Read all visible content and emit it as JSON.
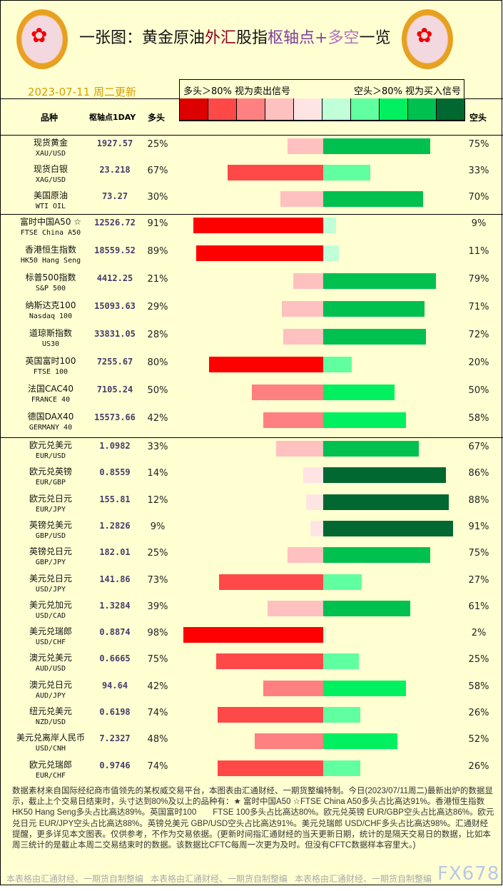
{
  "header": {
    "title_parts": [
      "一张图：黄金原油",
      "外汇",
      "股指",
      "枢轴点+",
      "多空",
      "一览"
    ],
    "date": "2023-07-11 周二更新",
    "legend_left": "多头＞80% 视为卖出信号",
    "legend_right": "空头＞80% 视为买入信号",
    "col_name": "品种",
    "col_pivot": "枢轴点1DAY",
    "col_long": "多头",
    "col_short": "空头"
  },
  "colors": {
    "long": [
      "#FFE4E4",
      "#FFC0C0",
      "#FF8080",
      "#FF4848",
      "#FF0000"
    ],
    "short": [
      "#C0FFD8",
      "#60FFA0",
      "#00F060",
      "#00C050",
      "#006830"
    ],
    "scale": [
      "#DD0000",
      "#FF4848",
      "#FF8080",
      "#FFC0C0",
      "#FFE4E4",
      "#C0FFD8",
      "#60FFA0",
      "#00F060",
      "#00C050",
      "#006830"
    ]
  },
  "sections": [
    [
      {
        "cn": "现货黄金",
        "en": "XAU/USD",
        "pivot": "1927.57",
        "long": 25,
        "short": 75
      },
      {
        "cn": "现货白银",
        "en": "XAG/USD",
        "pivot": "23.218",
        "long": 67,
        "short": 33
      },
      {
        "cn": "美国原油",
        "en": "WTI OIL",
        "pivot": "73.27",
        "long": 30,
        "short": 70
      }
    ],
    [
      {
        "cn": "富时中国A50 ☆",
        "en": "FTSE China A50",
        "pivot": "12526.72",
        "long": 91,
        "short": 9
      },
      {
        "cn": "香港恒生指数",
        "en": "HK50 Hang Seng",
        "pivot": "18559.52",
        "long": 89,
        "short": 11
      },
      {
        "cn": "标普500指数",
        "en": "S&P 500",
        "pivot": "4412.25",
        "long": 21,
        "short": 79
      },
      {
        "cn": "纳斯达克100",
        "en": "Nasdaq 100",
        "pivot": "15093.63",
        "long": 29,
        "short": 71
      },
      {
        "cn": "道琼斯指数",
        "en": "US30",
        "pivot": "33831.05",
        "long": 28,
        "short": 72
      },
      {
        "cn": "英国富时100",
        "en": "FTSE 100",
        "pivot": "7255.67",
        "long": 80,
        "short": 20
      },
      {
        "cn": "法国CAC40",
        "en": "FRANCE 40",
        "pivot": "7105.24",
        "long": 50,
        "short": 50
      },
      {
        "cn": "德国DAX40",
        "en": "GERMANY 40",
        "pivot": "15573.66",
        "long": 42,
        "short": 58
      }
    ],
    [
      {
        "cn": "欧元兑美元",
        "en": "EUR/USD",
        "pivot": "1.0982",
        "long": 33,
        "short": 67
      },
      {
        "cn": "欧元兑英镑",
        "en": "EUR/GBP",
        "pivot": "0.8559",
        "long": 14,
        "short": 86
      },
      {
        "cn": "欧元兑日元",
        "en": "EUR/JPY",
        "pivot": "155.81",
        "long": 12,
        "short": 88
      },
      {
        "cn": "英镑兑美元",
        "en": "GBP/USD",
        "pivot": "1.2826",
        "long": 9,
        "short": 91
      },
      {
        "cn": "英镑兑日元",
        "en": "GBP/JPY",
        "pivot": "182.01",
        "long": 25,
        "short": 75
      },
      {
        "cn": "美元兑日元",
        "en": "USD/JPY",
        "pivot": "141.86",
        "long": 73,
        "short": 27
      },
      {
        "cn": "美元兑加元",
        "en": "USD/CAD",
        "pivot": "1.3284",
        "long": 39,
        "short": 61
      },
      {
        "cn": "美元兑瑞郎",
        "en": "USD/CHF",
        "pivot": "0.8874",
        "long": 98,
        "short": 2
      },
      {
        "cn": "澳元兑美元",
        "en": "AUD/USD",
        "pivot": "0.6665",
        "long": 75,
        "short": 25
      },
      {
        "cn": "澳元兑日元",
        "en": "AUD/JPY",
        "pivot": "94.64",
        "long": 42,
        "short": 58
      },
      {
        "cn": "纽元兑美元",
        "en": "NZD/USD",
        "pivot": "0.6198",
        "long": 74,
        "short": 26
      },
      {
        "cn": "美元兑离岸人民币",
        "en": "USD/CNH",
        "pivot": "7.2327",
        "long": 48,
        "short": 52
      },
      {
        "cn": "欧元兑瑞郎",
        "en": "EUR/CHF",
        "pivot": "0.9746",
        "long": 74,
        "short": 26
      }
    ]
  ],
  "footer": {
    "text": "数据素材来自国际经纪商市值领先的某权威交易平台，本图表由汇通财经、一期货整编特制。今日(2023/07/11周二)最新出炉的数据显示，截止上个交易日结束时，头寸达到80%及以上的品种有：★ 富时中国A50 ☆FTSE China A50多头占比高达91%。香港恒生指数 HK50 Hang Seng多头占比高达89%。英国富时100　　FTSE 100多头占比高达80%。欧元兑英镑 EUR/GBP空头占比高达86%。欧元兑日元 EUR/JPY空头占比高达88%。英镑兑美元 GBP/USD空头占比高达91%。美元兑瑞郎 USD/CHF多头占比高达98%。汇通财经提醒，更多详见本文图表。仅供参考，不作为交易依据。(更新时间指汇通财经的当天更新日期，统计的是隔天交易日的数据，比如本周三统计的是截止本周二交易结束时的数据。该数据比CFTC每周一次更为及时。但没有CFTC数据样本容里大。)",
    "credit": "本表格由汇通财经、一期货自制整编",
    "watermark": "FX678"
  }
}
